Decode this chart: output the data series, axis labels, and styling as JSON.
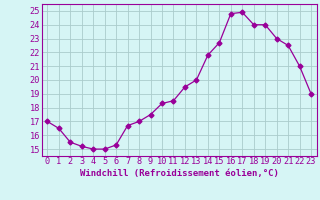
{
  "x": [
    0,
    1,
    2,
    3,
    4,
    5,
    6,
    7,
    8,
    9,
    10,
    11,
    12,
    13,
    14,
    15,
    16,
    17,
    18,
    19,
    20,
    21,
    22,
    23
  ],
  "y": [
    17,
    16.5,
    15.5,
    15.2,
    15,
    15,
    15.3,
    16.7,
    17,
    17.5,
    18.3,
    18.5,
    19.5,
    20,
    21.8,
    22.7,
    24.8,
    24.9,
    24,
    24,
    23,
    22.5,
    21,
    19
  ],
  "line_color": "#990099",
  "marker": "D",
  "marker_size": 2.5,
  "bg_color": "#d6f5f5",
  "grid_color": "#aacccc",
  "xlabel": "Windchill (Refroidissement éolien,°C)",
  "xlim": [
    -0.5,
    23.5
  ],
  "ylim": [
    14.5,
    25.5
  ],
  "yticks": [
    15,
    16,
    17,
    18,
    19,
    20,
    21,
    22,
    23,
    24,
    25
  ],
  "xticks": [
    0,
    1,
    2,
    3,
    4,
    5,
    6,
    7,
    8,
    9,
    10,
    11,
    12,
    13,
    14,
    15,
    16,
    17,
    18,
    19,
    20,
    21,
    22,
    23
  ],
  "label_fontsize": 6.5,
  "tick_fontsize": 6.2
}
